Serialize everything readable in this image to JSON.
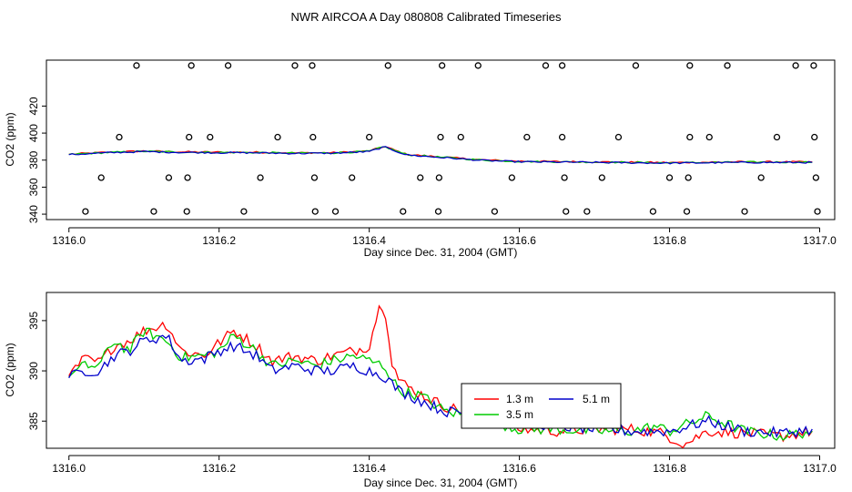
{
  "title": "NWR AIRCOA A  Day 080808  Calibrated Timeseries",
  "colors": {
    "s1": "#ff0000",
    "s2": "#00cc00",
    "s3": "#0000cc"
  },
  "chart_data": [
    {
      "type": "scatter+line",
      "xlabel": "Day since Dec. 31, 2004 (GMT)",
      "ylabel": "CO2 (ppm)",
      "xlim": [
        1315.97,
        1317.02
      ],
      "ylim": [
        336,
        454
      ],
      "xticks": [
        1316.0,
        1316.2,
        1316.4,
        1316.6,
        1316.8,
        1317.0
      ],
      "xtick_labels": [
        "1316.0",
        "1316.2",
        "1316.4",
        "1316.6",
        "1316.8",
        "1317.0"
      ],
      "yticks": [
        340,
        360,
        380,
        400,
        420
      ],
      "ytick_labels": [
        "340",
        "360",
        "380",
        "400",
        "420"
      ],
      "calibration_points": [
        {
          "x": 1316.09,
          "y": 450
        },
        {
          "x": 1316.163,
          "y": 450
        },
        {
          "x": 1316.212,
          "y": 450
        },
        {
          "x": 1316.301,
          "y": 450
        },
        {
          "x": 1316.324,
          "y": 450
        },
        {
          "x": 1316.425,
          "y": 450
        },
        {
          "x": 1316.497,
          "y": 450
        },
        {
          "x": 1316.545,
          "y": 450
        },
        {
          "x": 1316.635,
          "y": 450
        },
        {
          "x": 1316.657,
          "y": 450
        },
        {
          "x": 1316.755,
          "y": 450
        },
        {
          "x": 1316.827,
          "y": 450
        },
        {
          "x": 1316.877,
          "y": 450
        },
        {
          "x": 1316.968,
          "y": 450
        },
        {
          "x": 1316.992,
          "y": 450
        },
        {
          "x": 1316.067,
          "y": 397
        },
        {
          "x": 1316.16,
          "y": 397
        },
        {
          "x": 1316.188,
          "y": 397
        },
        {
          "x": 1316.278,
          "y": 397
        },
        {
          "x": 1316.325,
          "y": 397
        },
        {
          "x": 1316.4,
          "y": 397
        },
        {
          "x": 1316.495,
          "y": 397
        },
        {
          "x": 1316.522,
          "y": 397
        },
        {
          "x": 1316.61,
          "y": 397
        },
        {
          "x": 1316.657,
          "y": 397
        },
        {
          "x": 1316.732,
          "y": 397
        },
        {
          "x": 1316.827,
          "y": 397
        },
        {
          "x": 1316.853,
          "y": 397
        },
        {
          "x": 1316.943,
          "y": 397
        },
        {
          "x": 1316.993,
          "y": 397
        },
        {
          "x": 1316.043,
          "y": 367
        },
        {
          "x": 1316.133,
          "y": 367
        },
        {
          "x": 1316.158,
          "y": 367
        },
        {
          "x": 1316.255,
          "y": 367
        },
        {
          "x": 1316.327,
          "y": 367
        },
        {
          "x": 1316.377,
          "y": 367
        },
        {
          "x": 1316.468,
          "y": 367
        },
        {
          "x": 1316.493,
          "y": 367
        },
        {
          "x": 1316.59,
          "y": 367
        },
        {
          "x": 1316.66,
          "y": 367
        },
        {
          "x": 1316.71,
          "y": 367
        },
        {
          "x": 1316.8,
          "y": 367
        },
        {
          "x": 1316.825,
          "y": 367
        },
        {
          "x": 1316.922,
          "y": 367
        },
        {
          "x": 1316.995,
          "y": 367
        },
        {
          "x": 1316.022,
          "y": 342
        },
        {
          "x": 1316.113,
          "y": 342
        },
        {
          "x": 1316.157,
          "y": 342
        },
        {
          "x": 1316.233,
          "y": 342
        },
        {
          "x": 1316.328,
          "y": 342
        },
        {
          "x": 1316.355,
          "y": 342
        },
        {
          "x": 1316.445,
          "y": 342
        },
        {
          "x": 1316.492,
          "y": 342
        },
        {
          "x": 1316.567,
          "y": 342
        },
        {
          "x": 1316.662,
          "y": 342
        },
        {
          "x": 1316.69,
          "y": 342
        },
        {
          "x": 1316.778,
          "y": 342
        },
        {
          "x": 1316.823,
          "y": 342
        },
        {
          "x": 1316.9,
          "y": 342
        },
        {
          "x": 1316.997,
          "y": 342
        }
      ],
      "series_keys": [
        {
          "x": 1316.0,
          "y": 384.2
        },
        {
          "x": 1316.05,
          "y": 385.6
        },
        {
          "x": 1316.1,
          "y": 386.5
        },
        {
          "x": 1316.15,
          "y": 385.9
        },
        {
          "x": 1316.2,
          "y": 385.7
        },
        {
          "x": 1316.25,
          "y": 385.6
        },
        {
          "x": 1316.3,
          "y": 385.2
        },
        {
          "x": 1316.35,
          "y": 385.3
        },
        {
          "x": 1316.4,
          "y": 386.5
        },
        {
          "x": 1316.42,
          "y": 390.0
        },
        {
          "x": 1316.45,
          "y": 384.0
        },
        {
          "x": 1316.5,
          "y": 382.0
        },
        {
          "x": 1316.55,
          "y": 380.0
        },
        {
          "x": 1316.6,
          "y": 379.0
        },
        {
          "x": 1316.7,
          "y": 378.5
        },
        {
          "x": 1316.8,
          "y": 378.0
        },
        {
          "x": 1316.9,
          "y": 378.5
        },
        {
          "x": 1316.99,
          "y": 378.5
        }
      ]
    },
    {
      "type": "line",
      "xlabel": "Day since Dec. 31, 2004 (GMT)",
      "ylabel": "CO2 (ppm)",
      "xlim": [
        1315.97,
        1317.02
      ],
      "ylim": [
        382.3,
        397.8
      ],
      "xticks": [
        1316.0,
        1316.2,
        1316.4,
        1316.6,
        1316.8,
        1317.0
      ],
      "xtick_labels": [
        "1316.0",
        "1316.2",
        "1316.4",
        "1316.6",
        "1316.8",
        "1317.0"
      ],
      "yticks": [
        385,
        390,
        395
      ],
      "ytick_labels": [
        "385",
        "390",
        "395"
      ],
      "legend": {
        "position": "lower-center",
        "entries": [
          "1.3 m",
          "3.5 m",
          "5.1 m"
        ]
      },
      "series": [
        {
          "name": "1.3 m",
          "color": "#ff0000",
          "keys": [
            {
              "x": 1316.0,
              "y": 389.5
            },
            {
              "x": 1316.02,
              "y": 391.2
            },
            {
              "x": 1316.04,
              "y": 390.8
            },
            {
              "x": 1316.06,
              "y": 392.5
            },
            {
              "x": 1316.08,
              "y": 393.0
            },
            {
              "x": 1316.1,
              "y": 394.0
            },
            {
              "x": 1316.13,
              "y": 394.7
            },
            {
              "x": 1316.15,
              "y": 392.0
            },
            {
              "x": 1316.18,
              "y": 391.5
            },
            {
              "x": 1316.2,
              "y": 392.8
            },
            {
              "x": 1316.22,
              "y": 394.0
            },
            {
              "x": 1316.25,
              "y": 392.5
            },
            {
              "x": 1316.27,
              "y": 391.0
            },
            {
              "x": 1316.3,
              "y": 391.5
            },
            {
              "x": 1316.33,
              "y": 391.0
            },
            {
              "x": 1316.35,
              "y": 391.5
            },
            {
              "x": 1316.38,
              "y": 392.0
            },
            {
              "x": 1316.4,
              "y": 392.5
            },
            {
              "x": 1316.41,
              "y": 395.5
            },
            {
              "x": 1316.416,
              "y": 396.8
            },
            {
              "x": 1316.423,
              "y": 395.5
            },
            {
              "x": 1316.43,
              "y": 391.0
            },
            {
              "x": 1316.44,
              "y": 389.0
            },
            {
              "x": 1316.46,
              "y": 388.0
            },
            {
              "x": 1316.5,
              "y": 386.5
            },
            {
              "x": 1316.55,
              "y": 385.5
            },
            {
              "x": 1316.6,
              "y": 384.2
            },
            {
              "x": 1316.65,
              "y": 384.0
            },
            {
              "x": 1316.7,
              "y": 384.2
            },
            {
              "x": 1316.75,
              "y": 384.2
            },
            {
              "x": 1316.79,
              "y": 383.8
            },
            {
              "x": 1316.82,
              "y": 382.7
            },
            {
              "x": 1316.85,
              "y": 384.0
            },
            {
              "x": 1316.9,
              "y": 383.8
            },
            {
              "x": 1316.95,
              "y": 383.5
            },
            {
              "x": 1316.99,
              "y": 384.0
            }
          ]
        },
        {
          "name": "3.5 m",
          "color": "#00cc00",
          "keys": [
            {
              "x": 1316.0,
              "y": 389.4
            },
            {
              "x": 1316.02,
              "y": 390.5
            },
            {
              "x": 1316.04,
              "y": 390.5
            },
            {
              "x": 1316.06,
              "y": 393.0
            },
            {
              "x": 1316.08,
              "y": 392.0
            },
            {
              "x": 1316.1,
              "y": 394.0
            },
            {
              "x": 1316.13,
              "y": 393.0
            },
            {
              "x": 1316.15,
              "y": 391.3
            },
            {
              "x": 1316.18,
              "y": 391.5
            },
            {
              "x": 1316.2,
              "y": 392.0
            },
            {
              "x": 1316.22,
              "y": 393.5
            },
            {
              "x": 1316.25,
              "y": 392.0
            },
            {
              "x": 1316.27,
              "y": 390.5
            },
            {
              "x": 1316.3,
              "y": 391.0
            },
            {
              "x": 1316.33,
              "y": 390.5
            },
            {
              "x": 1316.35,
              "y": 391.0
            },
            {
              "x": 1316.38,
              "y": 391.5
            },
            {
              "x": 1316.4,
              "y": 391.0
            },
            {
              "x": 1316.42,
              "y": 390.5
            },
            {
              "x": 1316.44,
              "y": 388.0
            },
            {
              "x": 1316.47,
              "y": 387.5
            },
            {
              "x": 1316.5,
              "y": 386.0
            },
            {
              "x": 1316.55,
              "y": 385.3
            },
            {
              "x": 1316.6,
              "y": 384.2
            },
            {
              "x": 1316.65,
              "y": 384.2
            },
            {
              "x": 1316.7,
              "y": 384.0
            },
            {
              "x": 1316.75,
              "y": 384.0
            },
            {
              "x": 1316.78,
              "y": 384.5
            },
            {
              "x": 1316.8,
              "y": 384.0
            },
            {
              "x": 1316.85,
              "y": 385.5
            },
            {
              "x": 1316.9,
              "y": 384.0
            },
            {
              "x": 1316.95,
              "y": 383.5
            },
            {
              "x": 1316.99,
              "y": 384.0
            }
          ]
        },
        {
          "name": "5.1 m",
          "color": "#0000cc",
          "keys": [
            {
              "x": 1316.0,
              "y": 389.3
            },
            {
              "x": 1316.02,
              "y": 390.0
            },
            {
              "x": 1316.04,
              "y": 390.0
            },
            {
              "x": 1316.06,
              "y": 391.5
            },
            {
              "x": 1316.08,
              "y": 392.0
            },
            {
              "x": 1316.1,
              "y": 393.0
            },
            {
              "x": 1316.13,
              "y": 393.5
            },
            {
              "x": 1316.15,
              "y": 391.0
            },
            {
              "x": 1316.18,
              "y": 391.2
            },
            {
              "x": 1316.2,
              "y": 392.0
            },
            {
              "x": 1316.22,
              "y": 392.5
            },
            {
              "x": 1316.25,
              "y": 391.5
            },
            {
              "x": 1316.27,
              "y": 390.0
            },
            {
              "x": 1316.3,
              "y": 390.5
            },
            {
              "x": 1316.33,
              "y": 390.0
            },
            {
              "x": 1316.35,
              "y": 390.0
            },
            {
              "x": 1316.38,
              "y": 390.5
            },
            {
              "x": 1316.4,
              "y": 390.0
            },
            {
              "x": 1316.42,
              "y": 389.5
            },
            {
              "x": 1316.44,
              "y": 388.0
            },
            {
              "x": 1316.47,
              "y": 387.0
            },
            {
              "x": 1316.5,
              "y": 386.0
            },
            {
              "x": 1316.55,
              "y": 385.5
            },
            {
              "x": 1316.6,
              "y": 385.0
            },
            {
              "x": 1316.65,
              "y": 384.5
            },
            {
              "x": 1316.7,
              "y": 384.2
            },
            {
              "x": 1316.75,
              "y": 384.0
            },
            {
              "x": 1316.8,
              "y": 384.0
            },
            {
              "x": 1316.85,
              "y": 385.0
            },
            {
              "x": 1316.9,
              "y": 384.0
            },
            {
              "x": 1316.95,
              "y": 383.8
            },
            {
              "x": 1316.99,
              "y": 384.2
            }
          ]
        }
      ]
    }
  ]
}
